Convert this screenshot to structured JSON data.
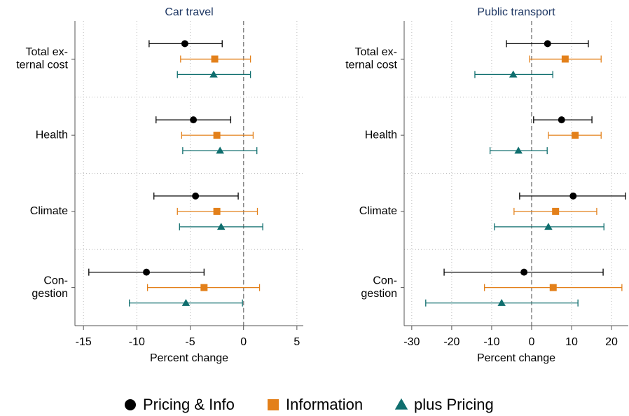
{
  "chart_data": [
    {
      "type": "errorbar",
      "title": "Car travel",
      "xlabel": "Percent change",
      "categories": [
        "Total ex-\nternal cost",
        "Health",
        "Climate",
        "Con-\ngestion"
      ],
      "xlim": [
        -15.8,
        5.6
      ],
      "xticks": [
        -15,
        -10,
        -5,
        0,
        5
      ],
      "refline": 0,
      "grid": true,
      "series": [
        {
          "name": "Pricing & Info",
          "color": "#000000",
          "marker": "circle",
          "values": [
            -5.5,
            -4.7,
            -4.5,
            -9.1
          ],
          "ci_low": [
            -8.85,
            -8.2,
            -8.4,
            -14.5
          ],
          "ci_high": [
            -2.0,
            -1.2,
            -0.5,
            -3.7
          ]
        },
        {
          "name": "Information",
          "color": "#e3801a",
          "marker": "square",
          "values": [
            -2.7,
            -2.5,
            -2.5,
            -3.7
          ],
          "ci_low": [
            -5.9,
            -5.8,
            -6.2,
            -9.0
          ],
          "ci_high": [
            0.65,
            0.9,
            1.3,
            1.5
          ]
        },
        {
          "name": "plus Pricing",
          "color": "#0f6e6e",
          "marker": "triangle",
          "values": [
            -2.8,
            -2.2,
            -2.1,
            -5.4
          ],
          "ci_low": [
            -6.2,
            -5.7,
            -6.0,
            -10.7
          ],
          "ci_high": [
            0.65,
            1.25,
            1.8,
            -0.1
          ]
        }
      ]
    },
    {
      "type": "errorbar",
      "title": "Public transport",
      "xlabel": "Percent change",
      "categories": [
        "Total ex-\nternal cost",
        "Health",
        "Climate",
        "Con-\ngestion"
      ],
      "xlim": [
        -31.9,
        24.2
      ],
      "xticks": [
        -30,
        -20,
        -10,
        0,
        10,
        20
      ],
      "refline": 0,
      "grid": true,
      "series": [
        {
          "name": "Pricing & Info",
          "color": "#000000",
          "marker": "circle",
          "values": [
            4.0,
            7.5,
            10.4,
            -1.9
          ],
          "ci_low": [
            -6.3,
            0.5,
            -3.0,
            -21.9
          ],
          "ci_high": [
            14.2,
            15.1,
            23.5,
            17.9
          ]
        },
        {
          "name": "Information",
          "color": "#e3801a",
          "marker": "square",
          "values": [
            8.4,
            10.9,
            6.0,
            5.4
          ],
          "ci_low": [
            -0.5,
            4.2,
            -4.4,
            -11.8
          ],
          "ci_high": [
            17.4,
            17.4,
            16.3,
            22.6
          ]
        },
        {
          "name": "plus Pricing",
          "color": "#0f6e6e",
          "marker": "triangle",
          "values": [
            -4.6,
            -3.3,
            4.2,
            -7.5
          ],
          "ci_low": [
            -14.2,
            -10.4,
            -9.3,
            -26.5
          ],
          "ci_high": [
            5.3,
            3.9,
            18.1,
            11.6
          ]
        }
      ]
    }
  ]
}
